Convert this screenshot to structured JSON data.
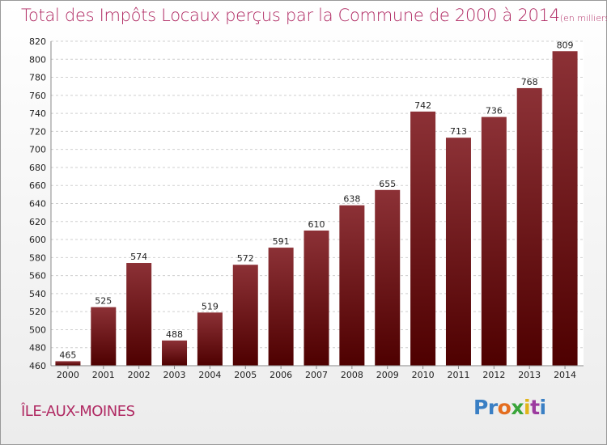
{
  "title": "Total des Impôts Locaux perçus par la Commune de 2000 à 2014",
  "unit": "(en milliers d'€)",
  "commune": "ÎLE-AUX-MOINES",
  "logo": {
    "letters": [
      "P",
      "r",
      "o",
      "x",
      "i",
      "t",
      "i"
    ],
    "colors": [
      "#3a7fc4",
      "#3a7fc4",
      "#e46d1f",
      "#3aa53a",
      "#e1b51a",
      "#9c3a9f",
      "#3a7fc4"
    ]
  },
  "chart_data": {
    "type": "bar",
    "categories": [
      "2000",
      "2001",
      "2002",
      "2003",
      "2004",
      "2005",
      "2006",
      "2007",
      "2008",
      "2009",
      "2010",
      "2011",
      "2012",
      "2013",
      "2014"
    ],
    "values": [
      465,
      525,
      574,
      488,
      519,
      572,
      591,
      610,
      638,
      655,
      742,
      713,
      736,
      768,
      809
    ],
    "ylim": [
      460,
      820
    ],
    "yticks": [
      460,
      480,
      500,
      520,
      540,
      560,
      580,
      600,
      620,
      640,
      660,
      680,
      700,
      720,
      740,
      760,
      780,
      800,
      820
    ],
    "grid": true,
    "bar_color_top": "#8c3136",
    "bar_color_bottom": "#4e0000",
    "data_labels": true
  }
}
